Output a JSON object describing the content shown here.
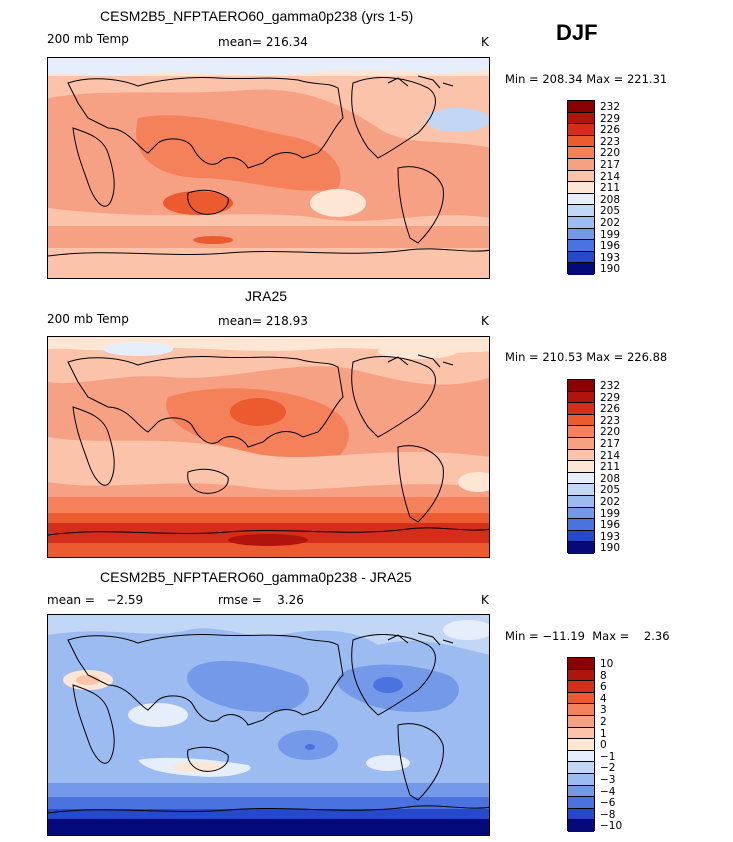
{
  "season": "DJF",
  "panels": [
    {
      "title": "CESM2B5_NFPTAERO60_gamma0p238 (yrs 1-5)",
      "left_label": "200 mb Temp",
      "stat_label": "mean= 216.34",
      "units": "K",
      "minmax": "Min = 208.34  Max = 221.31"
    },
    {
      "title": "JRA25",
      "left_label": "200 mb Temp",
      "stat_label": "mean= 218.93",
      "units": "K",
      "minmax": "Min = 210.53  Max = 226.88"
    },
    {
      "title": "CESM2B5_NFPTAERO60_gamma0p238 - JRA25",
      "left_label": "mean =   −2.59",
      "stat_label": "rmse =    3.26",
      "units": "K",
      "minmax": "Min = −11.19  Max =    2.36"
    }
  ],
  "colorbars": {
    "abs_levels": [
      "232",
      "229",
      "226",
      "223",
      "220",
      "217",
      "214",
      "211",
      "208",
      "205",
      "202",
      "199",
      "196",
      "193",
      "190"
    ],
    "diff_levels": [
      "10",
      "8",
      "6",
      "4",
      "3",
      "2",
      "1",
      "0",
      "−1",
      "−2",
      "−3",
      "−4",
      "−6",
      "−8",
      "−10"
    ],
    "colors": [
      "#8b0000",
      "#b0140c",
      "#d42e1a",
      "#ec5a30",
      "#f4815a",
      "#f7a184",
      "#fac3aa",
      "#fde6d4",
      "#e6eefb",
      "#c2d6f6",
      "#9cbbf0",
      "#7499e8",
      "#4a73e0",
      "#2649cc",
      "#0c1f99",
      "#050a7a"
    ]
  }
}
